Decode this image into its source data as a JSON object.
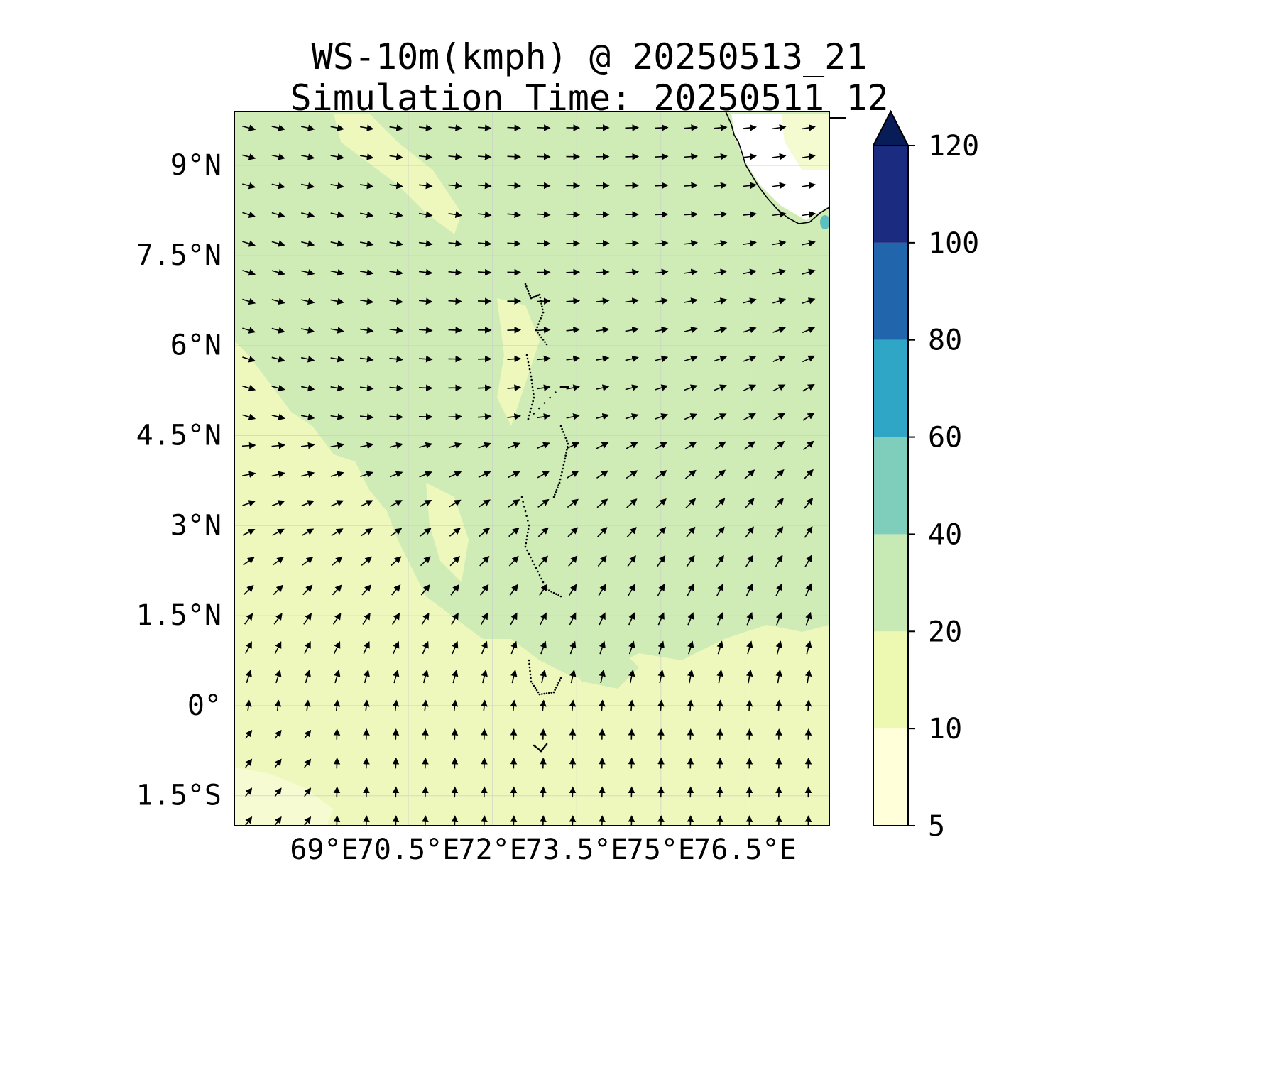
{
  "title": {
    "line1": "WS-10m(kmph) @ 20250513_21",
    "line2": "Simulation Time: 20250511_12"
  },
  "map": {
    "variable": "10 m wind speed (kmph) with wind direction arrows",
    "extent": {
      "lon": [
        67.4,
        78.0
      ],
      "lat": [
        -2.0,
        9.9
      ]
    },
    "lat_ticks": [
      "9°N",
      "7.5°N",
      "6°N",
      "4.5°N",
      "3°N",
      "1.5°N",
      "0°",
      "1.5°S"
    ],
    "lat_tick_values": [
      9,
      7.5,
      6,
      4.5,
      3,
      1.5,
      0,
      -1.5
    ],
    "lon_ticks": [
      "69°E",
      "70.5°E",
      "72°E",
      "73.5°E",
      "75°E",
      "76.5°E"
    ],
    "lon_tick_values": [
      69,
      70.5,
      72,
      73.5,
      75,
      76.5
    ],
    "grid": true,
    "features": [
      "India southern coast (top-right)",
      "Maldives atolls (dotted, center)"
    ]
  },
  "colorbar": {
    "levels": [
      5,
      10,
      20,
      40,
      60,
      80,
      100,
      120
    ],
    "tick_labels": [
      "5",
      "10",
      "20",
      "40",
      "60",
      "80",
      "100",
      "120"
    ],
    "colors": [
      "#ffffd9",
      "#edf8b1",
      "#c7e9b4",
      "#7fcdbb",
      "#2fa6c6",
      "#2166ac",
      "#1b2c80",
      "#081d58"
    ],
    "extend": "max"
  }
}
